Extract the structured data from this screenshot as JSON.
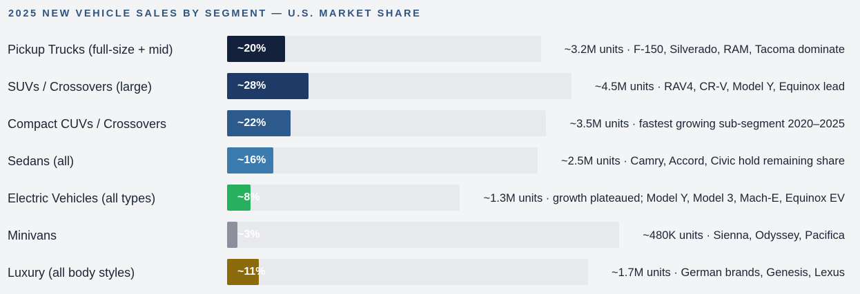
{
  "chart_data": {
    "type": "bar",
    "orientation": "horizontal",
    "title": "2025 NEW VEHICLE SALES BY SEGMENT — U.S. MARKET SHARE",
    "categories": [
      "Pickup Trucks (full-size + mid)",
      "SUVs / Crossovers (large)",
      "Compact CUVs / Crossovers",
      "Sedans (all)",
      "Electric Vehicles (all types)",
      "Minivans",
      "Luxury (all body styles)"
    ],
    "values": [
      20,
      28,
      22,
      16,
      8,
      3,
      11
    ],
    "value_labels": [
      "~20%",
      "~28%",
      "~22%",
      "~16%",
      "~8%",
      "~3%",
      "~11%"
    ],
    "notes": [
      "~3.2M units · F-150, Silverado, RAM, Tacoma dominate",
      "~4.5M units · RAV4, CR-V, Model Y, Equinox lead",
      "~3.5M units · fastest growing sub-segment 2020–2025",
      "~2.5M units · Camry, Accord, Civic hold remaining share",
      "~1.3M units · growth plateaued; Model Y, Model 3, Mach-E, Equinox EV",
      "~480K units · Sienna, Odyssey, Pacifica",
      "~1.7M units · German brands, Genesis, Lexus"
    ],
    "colors": [
      "#14213d",
      "#1e3a66",
      "#2c5a8c",
      "#3b7bb0",
      "#27b15f",
      "#8e8e9c",
      "#8b6a0c"
    ],
    "unit": "%",
    "xlabel": "",
    "ylabel": ""
  }
}
